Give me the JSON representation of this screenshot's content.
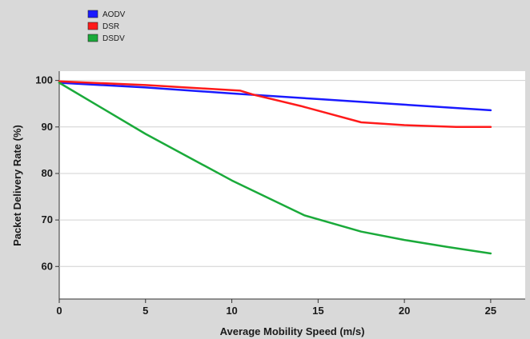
{
  "chart_data": {
    "type": "line",
    "title": "",
    "xlabel": "Average Mobility Speed (m/s)",
    "ylabel": "Packet Delivery Rate (%)",
    "xlim": [
      0,
      27
    ],
    "ylim": [
      53,
      102
    ],
    "x_ticks": [
      0,
      5,
      10,
      15,
      20,
      25
    ],
    "y_ticks": [
      60,
      70,
      80,
      90,
      100
    ],
    "x_tick_labels": [
      "0",
      "5",
      "10",
      "15",
      "20",
      "25"
    ],
    "y_tick_labels": [
      "60",
      "70",
      "80",
      "90",
      "100"
    ],
    "grid": "horizontal",
    "legend_position": "top-left",
    "series": [
      {
        "name": "AODV",
        "color": "#1a1aff",
        "points": [
          [
            0,
            99.5
          ],
          [
            5,
            98.5
          ],
          [
            10,
            97.2
          ],
          [
            15,
            96.0
          ],
          [
            20,
            94.8
          ],
          [
            25,
            93.6
          ]
        ]
      },
      {
        "name": "DSR",
        "color": "#ff1a1a",
        "points": [
          [
            0,
            99.8
          ],
          [
            5,
            99.0
          ],
          [
            10.5,
            97.8
          ],
          [
            11.2,
            97.0
          ],
          [
            14,
            94.5
          ],
          [
            17.5,
            91.0
          ],
          [
            20,
            90.4
          ],
          [
            23,
            90.0
          ],
          [
            25,
            90.0
          ]
        ]
      },
      {
        "name": "DSDV",
        "color": "#1aaa3a",
        "points": [
          [
            0,
            99.5
          ],
          [
            5,
            88.5
          ],
          [
            10,
            78.5
          ],
          [
            14.2,
            71.0
          ],
          [
            17.5,
            67.5
          ],
          [
            20,
            65.7
          ],
          [
            22.5,
            64.2
          ],
          [
            25,
            62.8
          ]
        ]
      }
    ]
  }
}
